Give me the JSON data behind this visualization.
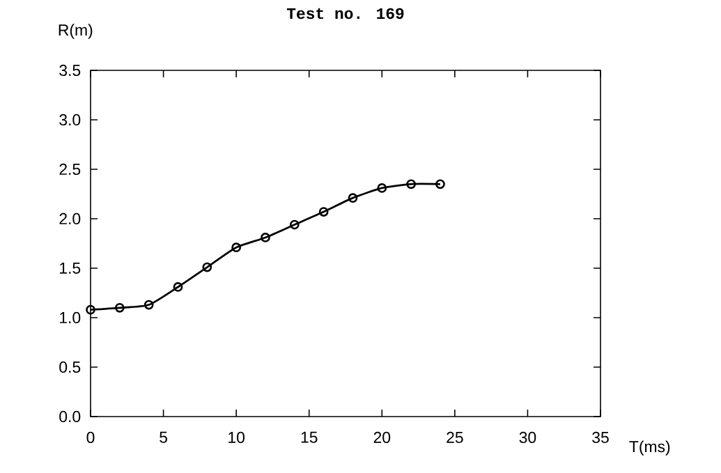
{
  "chart_data": {
    "type": "line",
    "title": "Test no. 169",
    "xlabel": "T(ms)",
    "ylabel": "R(m)",
    "x": [
      0,
      2,
      4,
      6,
      8,
      10,
      12,
      14,
      16,
      18,
      20,
      22,
      24
    ],
    "series": [
      {
        "color": "#000000",
        "values": [
          1.08,
          1.1,
          1.13,
          1.31,
          1.51,
          1.71,
          1.81,
          1.94,
          2.07,
          2.21,
          2.31,
          2.35,
          2.35
        ]
      }
    ],
    "xlim": [
      0,
      35
    ],
    "ylim": [
      0,
      3.5
    ],
    "xticks": [
      0,
      5,
      10,
      15,
      20,
      25,
      30,
      35
    ],
    "yticks": [
      {
        "value": 0,
        "label": "0.0"
      },
      {
        "value": 0.5,
        "label": "0.5"
      },
      {
        "value": 1,
        "label": "1.0"
      },
      {
        "value": 1.5,
        "label": "1.5"
      },
      {
        "value": 2,
        "label": "2.0"
      },
      {
        "value": 2.5,
        "label": "2.5"
      },
      {
        "value": 3,
        "label": "3.0"
      },
      {
        "value": 3.5,
        "label": "3.5"
      }
    ],
    "marker": "circle",
    "line_style": "solid"
  }
}
